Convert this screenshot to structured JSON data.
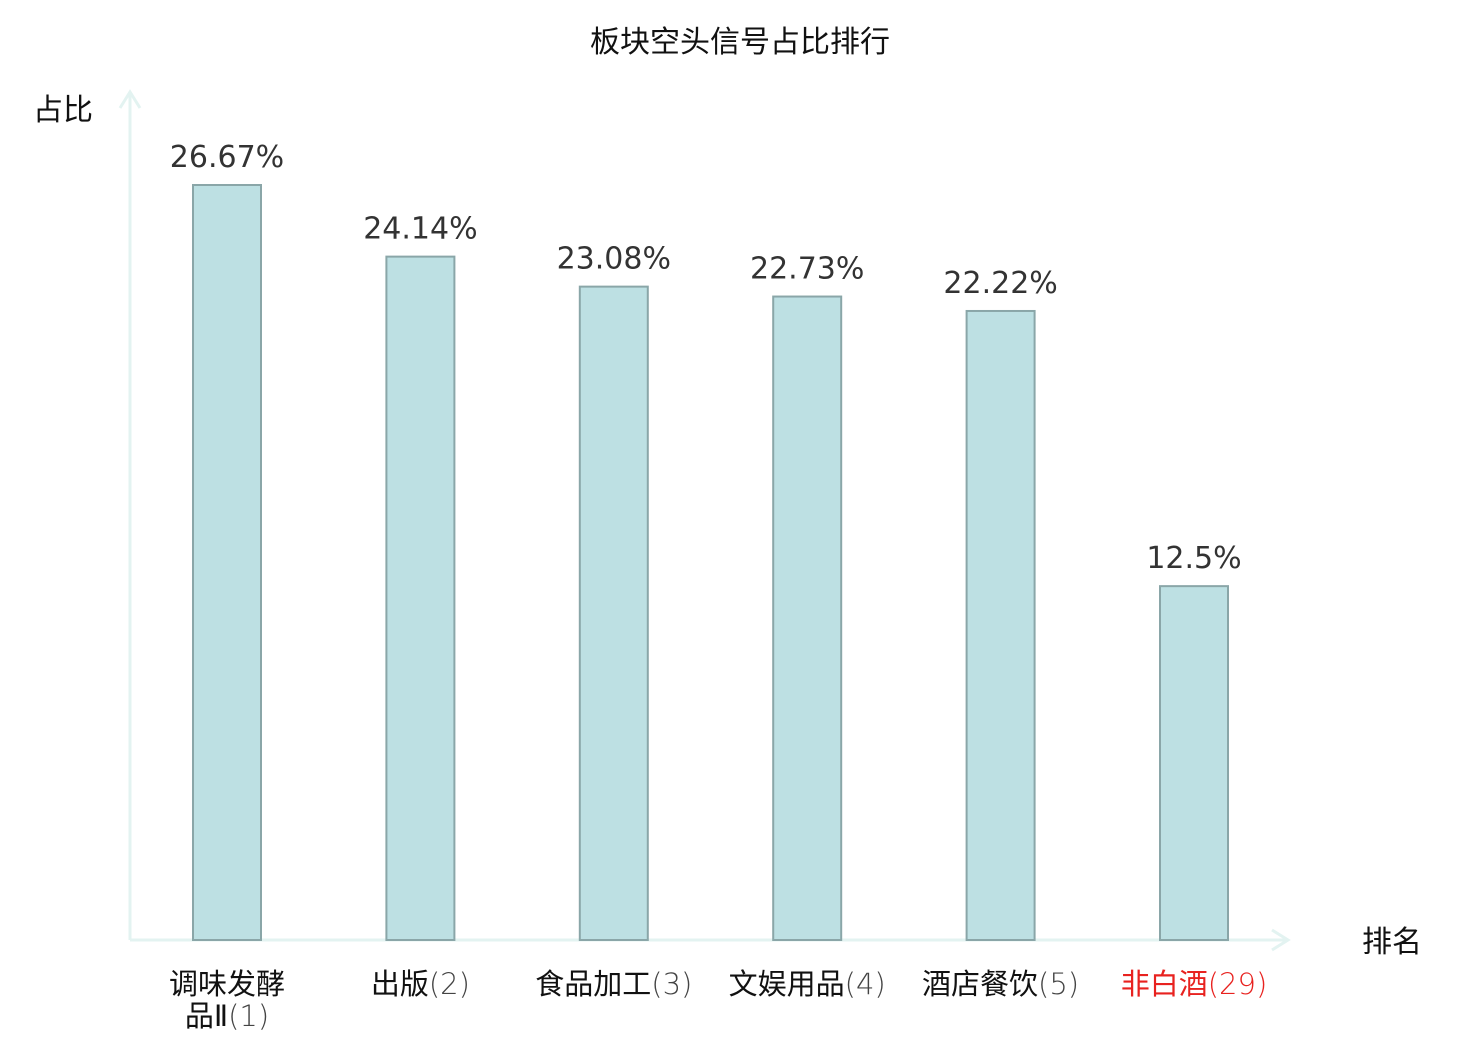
{
  "chart_data": {
    "type": "bar",
    "title": "板块空头信号占比排行",
    "ylabel": "占比",
    "xlabel": "排名",
    "categories": [
      {
        "name_lines": [
          "调味发酵",
          "品Ⅱ"
        ],
        "rank": "(1)"
      },
      {
        "name_lines": [
          "出版"
        ],
        "rank": "(2)"
      },
      {
        "name_lines": [
          "食品加工"
        ],
        "rank": "(3)"
      },
      {
        "name_lines": [
          "文娱用品"
        ],
        "rank": "(4)"
      },
      {
        "name_lines": [
          "酒店餐饮"
        ],
        "rank": "(5)"
      },
      {
        "name_lines": [
          "非白酒"
        ],
        "rank": "(29)"
      }
    ],
    "values": [
      26.67,
      24.14,
      23.08,
      22.73,
      22.22,
      12.5
    ],
    "value_labels": [
      "26.67%",
      "24.14%",
      "23.08%",
      "22.73%",
      "22.22%",
      "12.5%"
    ],
    "highlight_index": 5,
    "ylim": [
      0,
      26.67
    ],
    "grid": false,
    "colors": {
      "bar_fill": "#bde0e3",
      "bar_stroke": "#8aa6a8",
      "axis": "#e3f3f1",
      "text": "#111111",
      "value_text": "#333333",
      "rank_text": "#444444",
      "highlight": "#e8221f"
    }
  }
}
